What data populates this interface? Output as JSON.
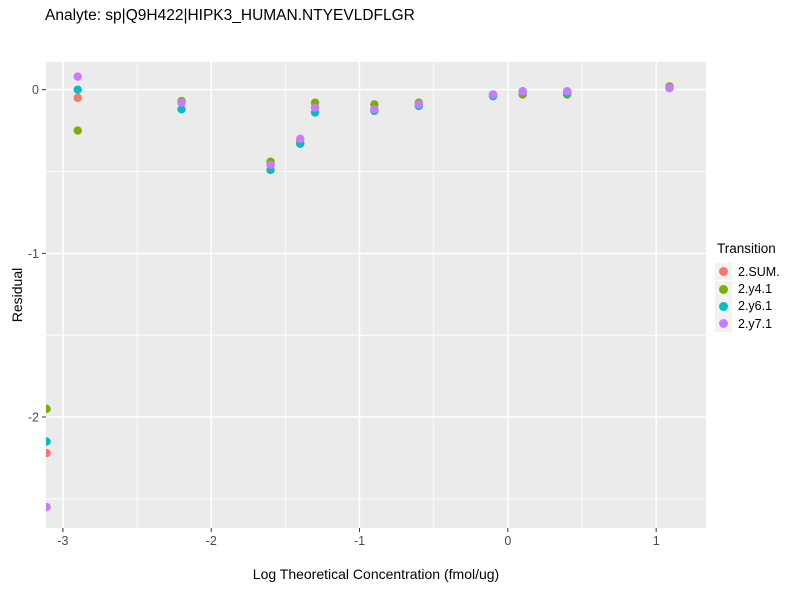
{
  "title": "Analyte: sp|Q9H422|HIPK3_HUMAN.NTYEVLDFLGR",
  "colors": {
    "page_bg": "#FFFFFF",
    "panel_bg": "#EBEBEB",
    "grid": "#FFFFFF",
    "tick_mark": "#333333",
    "tick_text": "#4D4D4D",
    "legend_key_bg": "#F2F2F2"
  },
  "chart_data": {
    "type": "scatter",
    "title": "Analyte: sp|Q9H422|HIPK3_HUMAN.NTYEVLDFLGR",
    "xlabel": "Log Theoretical Concentration (fmol/ug)",
    "ylabel": "Residual",
    "legend_title": "Transition",
    "legend_position": "right",
    "grid": "white major+minor on gray panel",
    "xlim": [
      -3.114,
      1.336
    ],
    "ylim": [
      -2.678,
      0.169
    ],
    "x_ticks": [
      -3,
      -2,
      -1,
      0,
      1
    ],
    "y_ticks": [
      0,
      -1,
      -2
    ],
    "x_minor_ticks": [
      -2.5,
      -1.5,
      -0.5,
      0.5
    ],
    "y_minor_ticks": [
      -0.5,
      -1.5,
      -2.5
    ],
    "point_radius_px": 4.2,
    "x": [
      -3.11,
      -2.9,
      -2.2,
      -1.6,
      -1.4,
      -1.3,
      -0.9,
      -0.6,
      -0.1,
      0.1,
      0.4,
      1.09
    ],
    "series": [
      {
        "name": "2.SUM.",
        "color": "#F8766D",
        "values": [
          -2.22,
          -0.05,
          -0.08,
          -0.46,
          -0.31,
          -0.11,
          -0.12,
          -0.09,
          -0.03,
          -0.01,
          -0.01,
          0.01
        ]
      },
      {
        "name": "2.y4.1",
        "color": "#7CAE00",
        "values": [
          -1.95,
          -0.25,
          -0.07,
          -0.44,
          -0.33,
          -0.08,
          -0.09,
          -0.08,
          -0.03,
          -0.03,
          -0.03,
          0.02
        ]
      },
      {
        "name": "2.y6.1",
        "color": "#00BFC4",
        "values": [
          -2.15,
          0.0,
          -0.12,
          -0.49,
          -0.33,
          -0.14,
          -0.13,
          -0.1,
          -0.04,
          -0.01,
          -0.02,
          0.01
        ]
      },
      {
        "name": "2.y7.1",
        "color": "#C77CFF",
        "values": [
          -2.55,
          0.08,
          -0.08,
          -0.46,
          -0.3,
          -0.11,
          -0.12,
          -0.09,
          -0.03,
          -0.01,
          -0.01,
          0.01
        ]
      }
    ]
  }
}
